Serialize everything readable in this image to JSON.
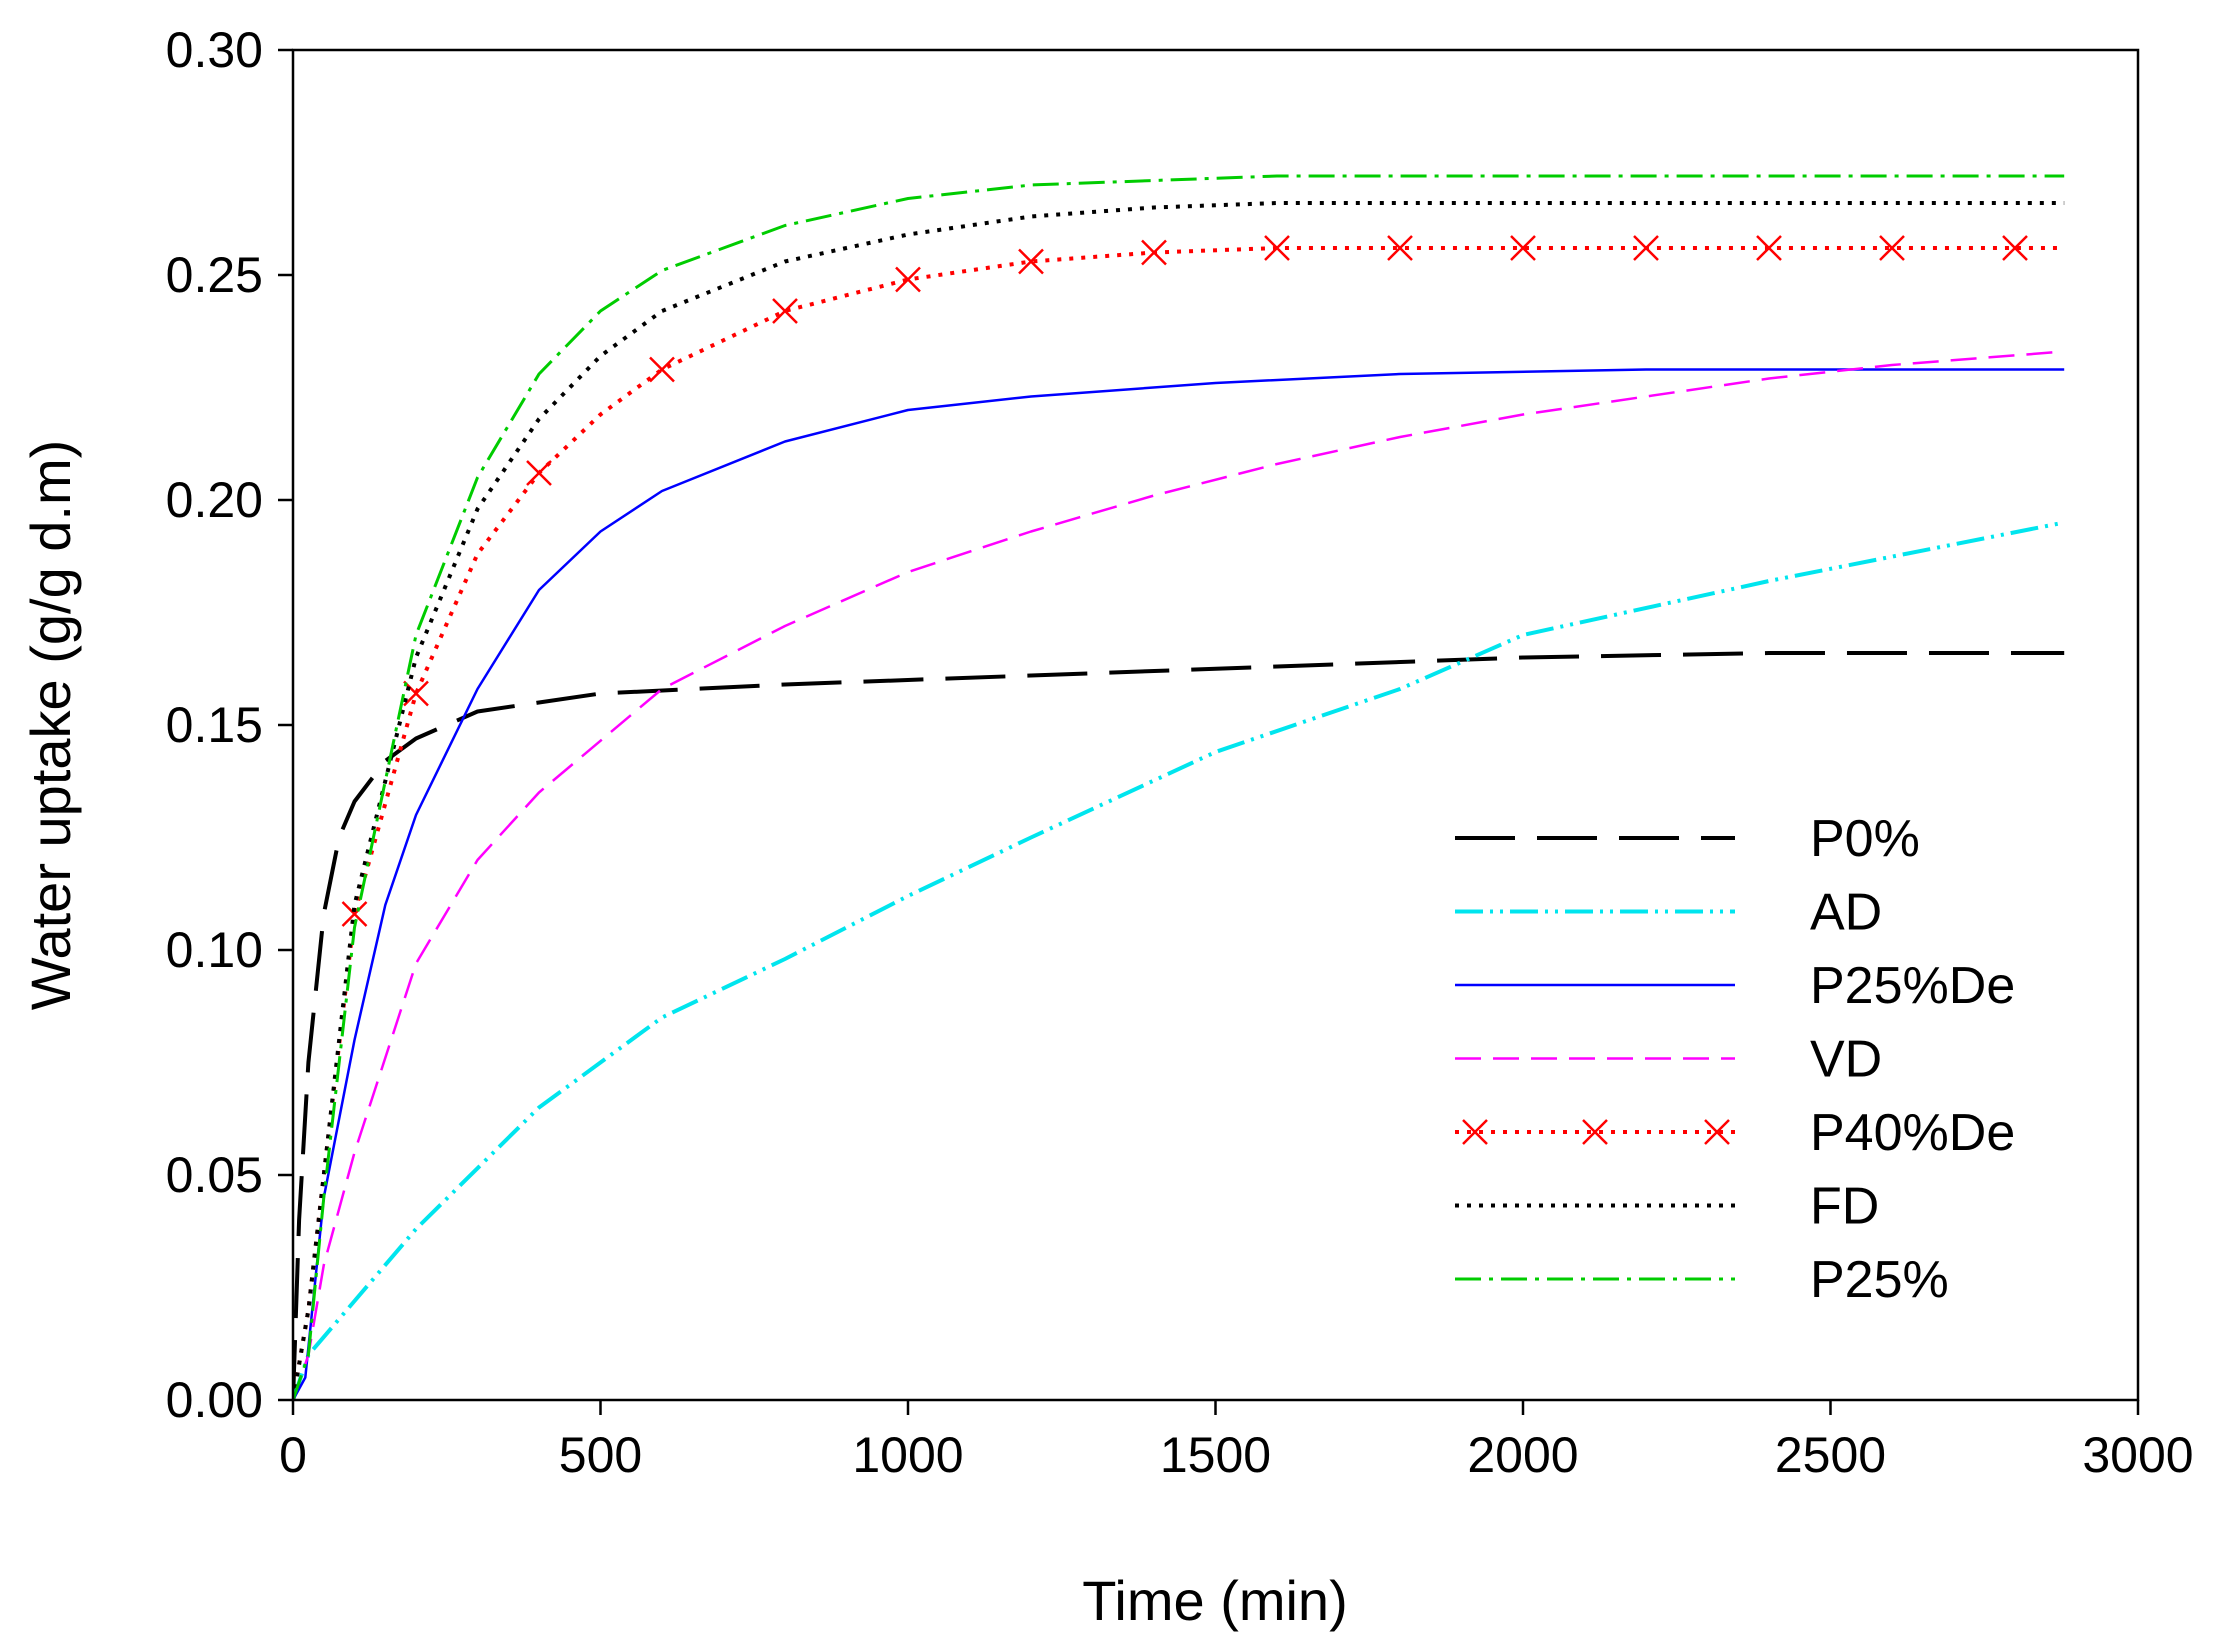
{
  "chart_data": {
    "type": "line",
    "xlabel": "Time (min)",
    "ylabel": "Water uptake (g/g d.m)",
    "xlim": [
      0,
      3000
    ],
    "ylim": [
      0,
      0.3
    ],
    "x_ticks": [
      "0",
      "500",
      "1000",
      "1500",
      "2000",
      "2500",
      "3000"
    ],
    "y_ticks": [
      "0.00",
      "0.05",
      "0.10",
      "0.15",
      "0.20",
      "0.25",
      "0.30"
    ],
    "grid": false,
    "legend_position": "lower-right",
    "series": [
      {
        "name": "P0%",
        "color": "#000000",
        "line_style": "long-dash",
        "x": [
          0,
          10,
          25,
          50,
          75,
          100,
          150,
          200,
          300,
          500,
          800,
          1200,
          1600,
          2000,
          2400,
          2880
        ],
        "y": [
          0,
          0.04,
          0.075,
          0.108,
          0.125,
          0.133,
          0.142,
          0.147,
          0.153,
          0.157,
          0.159,
          0.161,
          0.163,
          0.165,
          0.166,
          0.166
        ]
      },
      {
        "name": "AD",
        "color": "#00e5ee",
        "line_style": "dash-dot-dot",
        "x": [
          0,
          25,
          100,
          200,
          400,
          600,
          800,
          1000,
          1200,
          1500,
          1800,
          2000,
          2400,
          2880
        ],
        "y": [
          0,
          0.01,
          0.022,
          0.038,
          0.065,
          0.085,
          0.098,
          0.112,
          0.125,
          0.144,
          0.158,
          0.17,
          0.182,
          0.195
        ]
      },
      {
        "name": "P25%De",
        "color": "#0000ff",
        "line_style": "solid",
        "x": [
          0,
          20,
          50,
          100,
          150,
          200,
          300,
          400,
          500,
          600,
          800,
          1000,
          1200,
          1500,
          1800,
          2200,
          2600,
          2880
        ],
        "y": [
          0,
          0.005,
          0.045,
          0.08,
          0.11,
          0.13,
          0.158,
          0.18,
          0.193,
          0.202,
          0.213,
          0.22,
          0.223,
          0.226,
          0.228,
          0.229,
          0.229,
          0.229
        ]
      },
      {
        "name": "VD",
        "color": "#ff00ff",
        "line_style": "dash",
        "x": [
          0,
          25,
          50,
          100,
          200,
          300,
          400,
          600,
          800,
          1000,
          1200,
          1400,
          1600,
          1800,
          2000,
          2200,
          2400,
          2600,
          2880
        ],
        "y": [
          0,
          0.01,
          0.03,
          0.055,
          0.097,
          0.12,
          0.135,
          0.158,
          0.172,
          0.184,
          0.193,
          0.201,
          0.208,
          0.214,
          0.219,
          0.223,
          0.227,
          0.23,
          0.233
        ]
      },
      {
        "name": "P40%De",
        "color": "#ff0000",
        "line_style": "dotted-x-markers",
        "x": [
          0,
          25,
          50,
          100,
          200,
          300,
          400,
          500,
          600,
          800,
          1000,
          1200,
          1400,
          1600,
          1800,
          2000,
          2200,
          2400,
          2600,
          2800,
          2880
        ],
        "y": [
          0,
          0.02,
          0.05,
          0.108,
          0.157,
          0.188,
          0.206,
          0.219,
          0.229,
          0.242,
          0.249,
          0.253,
          0.255,
          0.256,
          0.256,
          0.256,
          0.256,
          0.256,
          0.256,
          0.256,
          0.256
        ],
        "marker_x": [
          100,
          200,
          400,
          600,
          800,
          1000,
          1200,
          1400,
          1600,
          1800,
          2000,
          2200,
          2400,
          2600,
          2800
        ],
        "marker_y": [
          0.108,
          0.157,
          0.206,
          0.229,
          0.242,
          0.249,
          0.253,
          0.255,
          0.256,
          0.256,
          0.256,
          0.256,
          0.256,
          0.256,
          0.256
        ]
      },
      {
        "name": "FD",
        "color": "#000000",
        "line_style": "dotted",
        "x": [
          0,
          25,
          50,
          100,
          200,
          300,
          400,
          500,
          600,
          800,
          1000,
          1200,
          1400,
          1600,
          2000,
          2400,
          2880
        ],
        "y": [
          0,
          0.02,
          0.05,
          0.11,
          0.165,
          0.198,
          0.218,
          0.232,
          0.242,
          0.253,
          0.259,
          0.263,
          0.265,
          0.266,
          0.266,
          0.266,
          0.266
        ]
      },
      {
        "name": "P25%",
        "color": "#00cc00",
        "line_style": "dash-dot",
        "x": [
          0,
          25,
          50,
          100,
          200,
          300,
          400,
          500,
          600,
          800,
          1000,
          1200,
          1400,
          1600,
          1800,
          2200,
          2600,
          2880
        ],
        "y": [
          0,
          0.01,
          0.045,
          0.105,
          0.17,
          0.205,
          0.228,
          0.242,
          0.251,
          0.261,
          0.267,
          0.27,
          0.271,
          0.272,
          0.272,
          0.272,
          0.272,
          0.272
        ]
      }
    ]
  }
}
